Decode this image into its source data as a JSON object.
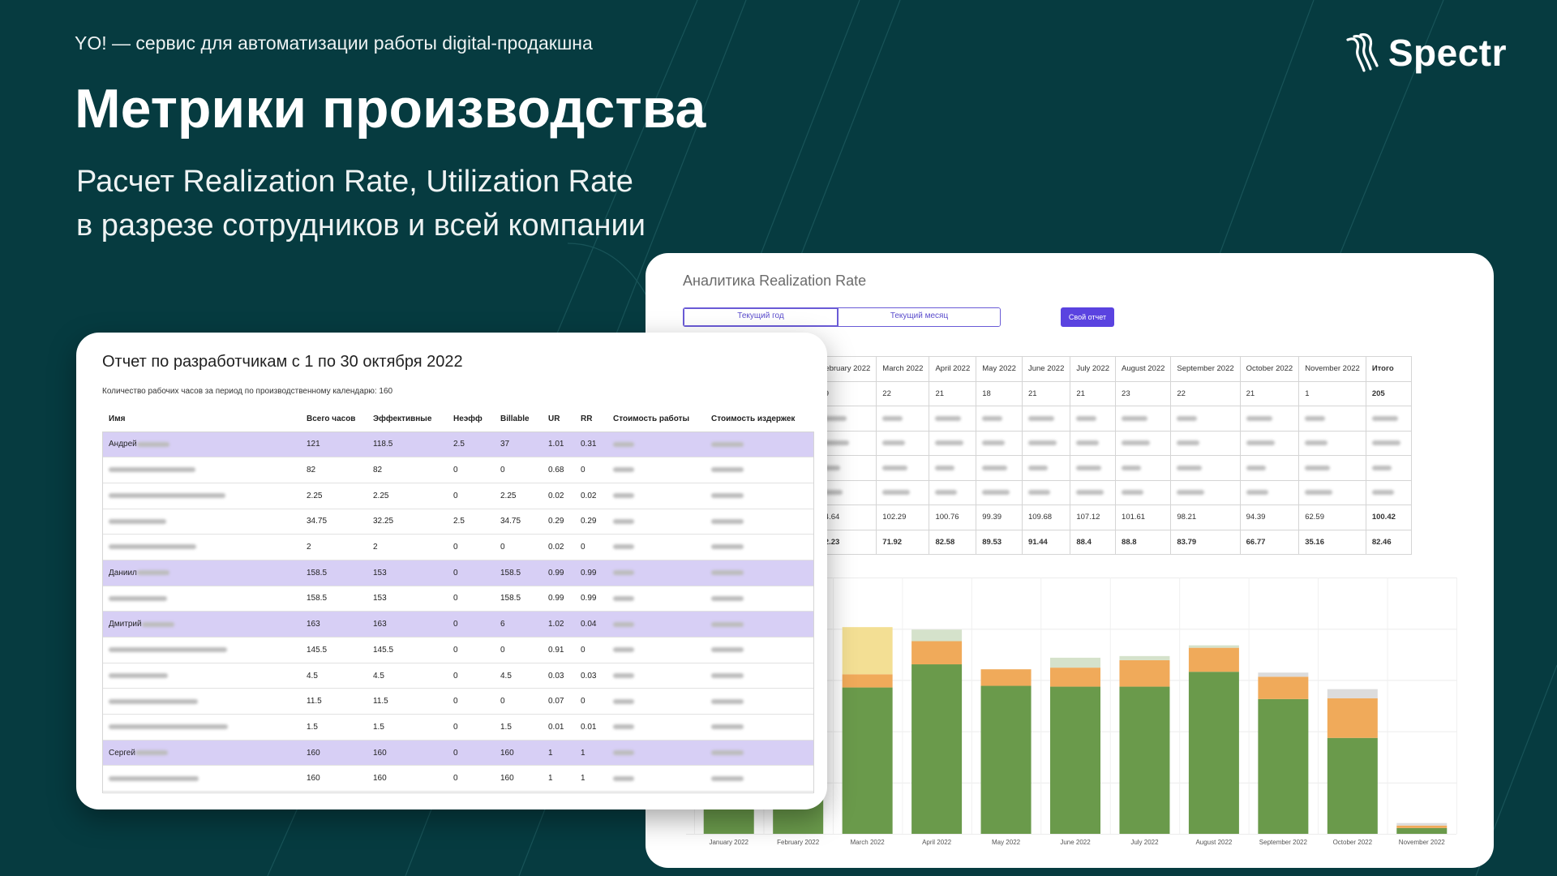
{
  "header": {
    "tagline": "YO! — сервис для автоматизации работы digital-продакшна",
    "logo_text": "Spectr",
    "title": "Метрики производства",
    "subtitle_line1": "Расчет Realization Rate, Utilization Rate",
    "subtitle_line2": "в разрезе сотрудников и всей компании"
  },
  "analytics": {
    "title": "Аналитика Realization Rate",
    "tab_year": "Текущий год",
    "tab_month": "Текущий месяц",
    "custom_report_button": "Свой отчет",
    "months": [
      "February 2022",
      "March 2022",
      "April 2022",
      "May 2022",
      "June 2022",
      "July 2022",
      "August 2022",
      "September 2022",
      "October 2022",
      "November 2022"
    ],
    "total_label": "Итого",
    "row_days": [
      "19",
      "22",
      "21",
      "18",
      "21",
      "21",
      "23",
      "22",
      "21",
      "1"
    ],
    "row_days_total": "205",
    "row_rate1": [
      "94.64",
      "102.29",
      "100.76",
      "99.39",
      "109.68",
      "107.12",
      "101.61",
      "98.21",
      "94.39",
      "62.59"
    ],
    "row_rate1_total": "100.42",
    "row_rate2": [
      "82.23",
      "71.92",
      "82.58",
      "89.53",
      "91.44",
      "88.4",
      "88.8",
      "83.79",
      "66.77",
      "35.16"
    ],
    "row_rate2_total": "82.46",
    "colors": {
      "green": "#6a9a4b",
      "orange": "#f0aa5a",
      "light_green": "#d5e2cb",
      "yellow": "#f3df94",
      "grey": "#dcdcdc",
      "accent": "#5a43e0"
    }
  },
  "chart_data": {
    "type": "bar",
    "stacked": true,
    "categories": [
      "January 2022",
      "February 2022",
      "March 2022",
      "April 2022",
      "May 2022",
      "June 2022",
      "July 2022",
      "August 2022",
      "September 2022",
      "October 2022",
      "November 2022"
    ],
    "series": [
      {
        "values": [
          200,
          200,
          177,
          205,
          179,
          178,
          178,
          196,
          163,
          116,
          7
        ],
        "color": "#6a9a4b"
      },
      {
        "values": [
          0,
          0,
          16,
          28,
          20,
          23,
          32,
          29,
          27,
          48,
          3
        ],
        "color": "#f0aa5a"
      },
      {
        "values": [
          0,
          0,
          57,
          14,
          0,
          12,
          5,
          3,
          0,
          0,
          0
        ],
        "color": "#d5e2cb"
      },
      {
        "values": [
          0,
          0,
          0,
          0,
          0,
          0,
          0,
          0,
          5,
          11,
          3
        ],
        "color": "#dcdcdc"
      }
    ],
    "extra_color_march": "#f3df94",
    "ylim": [
      0,
      310
    ],
    "grid": true
  },
  "dev_report": {
    "title": "Отчет по разработчикам с 1 по 30 октября 2022",
    "subtitle": "Количество рабочих часов за период по производственному календарю: 160",
    "columns": [
      "Имя",
      "Всего часов",
      "Эффективные",
      "Неэфф",
      "Billable",
      "UR",
      "RR",
      "Стоимость работы",
      "Стоимость издержек"
    ],
    "rows": [
      {
        "name": "Андрей",
        "highlight": true,
        "total": "121",
        "eff": "118.5",
        "neff": "2.5",
        "billable": "37",
        "ur": "1.01",
        "rr": "0.31"
      },
      {
        "name": "",
        "highlight": false,
        "total": "82",
        "eff": "82",
        "neff": "0",
        "billable": "0",
        "ur": "0.68",
        "rr": "0"
      },
      {
        "name": "",
        "highlight": false,
        "total": "2.25",
        "eff": "2.25",
        "neff": "0",
        "billable": "2.25",
        "ur": "0.02",
        "rr": "0.02"
      },
      {
        "name": "",
        "highlight": false,
        "total": "34.75",
        "eff": "32.25",
        "neff": "2.5",
        "billable": "34.75",
        "ur": "0.29",
        "rr": "0.29"
      },
      {
        "name": "",
        "highlight": false,
        "total": "2",
        "eff": "2",
        "neff": "0",
        "billable": "0",
        "ur": "0.02",
        "rr": "0"
      },
      {
        "name": "Даниил",
        "highlight": true,
        "total": "158.5",
        "eff": "153",
        "neff": "0",
        "billable": "158.5",
        "ur": "0.99",
        "rr": "0.99"
      },
      {
        "name": "",
        "highlight": false,
        "total": "158.5",
        "eff": "153",
        "neff": "0",
        "billable": "158.5",
        "ur": "0.99",
        "rr": "0.99"
      },
      {
        "name": "Дмитрий",
        "highlight": true,
        "total": "163",
        "eff": "163",
        "neff": "0",
        "billable": "6",
        "ur": "1.02",
        "rr": "0.04"
      },
      {
        "name": "",
        "highlight": false,
        "total": "145.5",
        "eff": "145.5",
        "neff": "0",
        "billable": "0",
        "ur": "0.91",
        "rr": "0"
      },
      {
        "name": "",
        "highlight": false,
        "total": "4.5",
        "eff": "4.5",
        "neff": "0",
        "billable": "4.5",
        "ur": "0.03",
        "rr": "0.03"
      },
      {
        "name": "",
        "highlight": false,
        "total": "11.5",
        "eff": "11.5",
        "neff": "0",
        "billable": "0",
        "ur": "0.07",
        "rr": "0"
      },
      {
        "name": "",
        "highlight": false,
        "total": "1.5",
        "eff": "1.5",
        "neff": "0",
        "billable": "1.5",
        "ur": "0.01",
        "rr": "0.01"
      },
      {
        "name": "Сергей",
        "highlight": true,
        "total": "160",
        "eff": "160",
        "neff": "0",
        "billable": "160",
        "ur": "1",
        "rr": "1"
      },
      {
        "name": "",
        "highlight": false,
        "total": "160",
        "eff": "160",
        "neff": "0",
        "billable": "160",
        "ur": "1",
        "rr": "1"
      }
    ]
  }
}
